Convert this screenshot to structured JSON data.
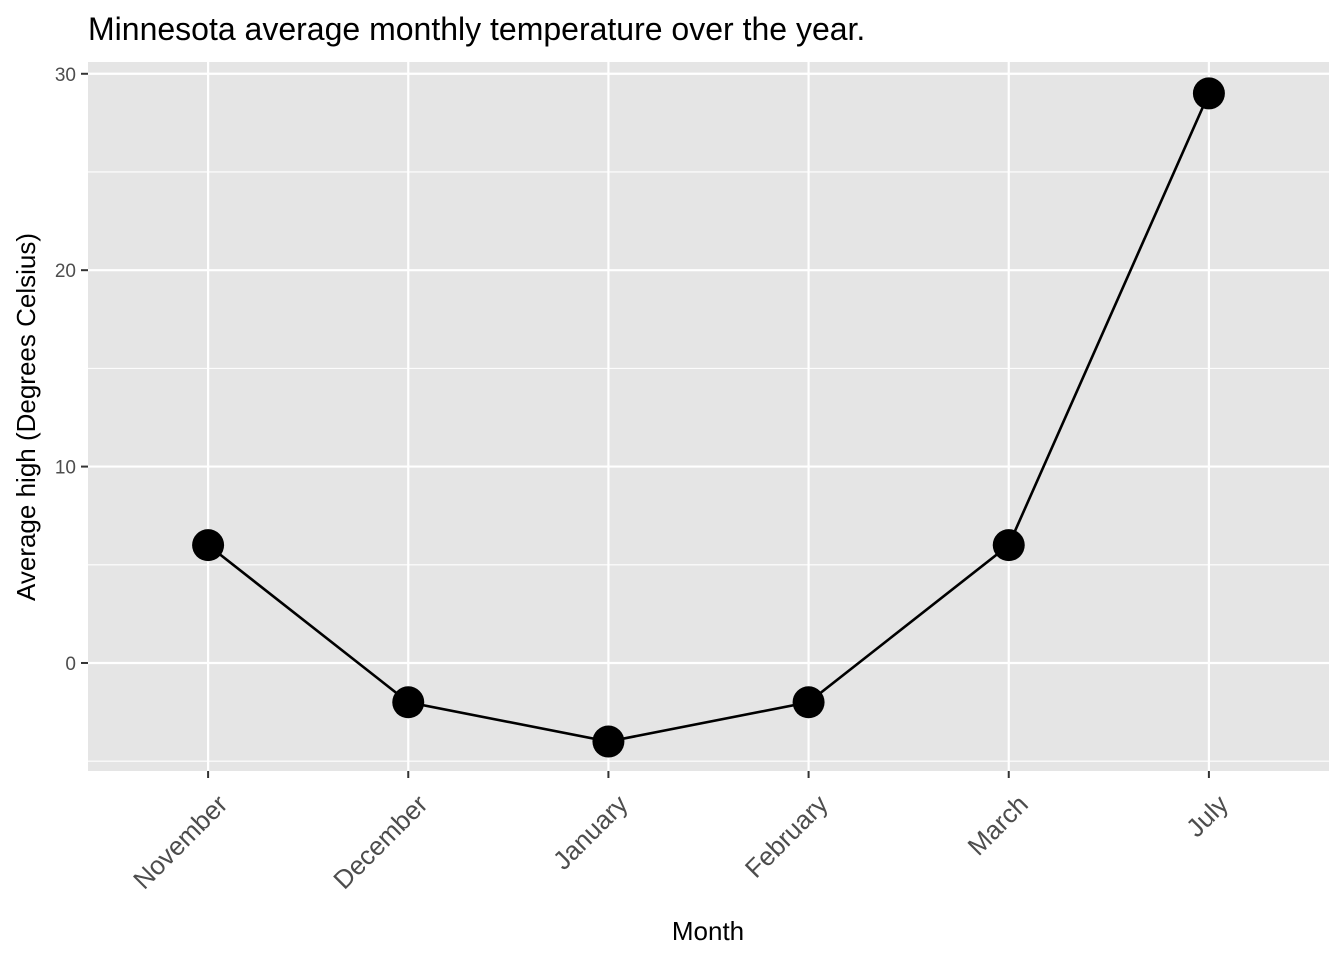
{
  "chart_data": {
    "type": "line",
    "title": "Minnesota average monthly temperature over the year.",
    "xlabel": "Month",
    "ylabel": "Average high (Degrees Celsius)",
    "categories": [
      "November",
      "December",
      "January",
      "February",
      "March",
      "July"
    ],
    "series": [
      {
        "values": [
          6,
          -2,
          -4,
          -2,
          6,
          29
        ]
      }
    ],
    "ylim": [
      -5.5,
      30.6
    ],
    "yticks": [
      0,
      10,
      20,
      30
    ],
    "grid": true,
    "markers": true,
    "colors": {
      "panel": "#e5e5e5",
      "grid": "#ffffff",
      "line": "#000000",
      "point": "#000000",
      "tick": "#333333"
    }
  }
}
